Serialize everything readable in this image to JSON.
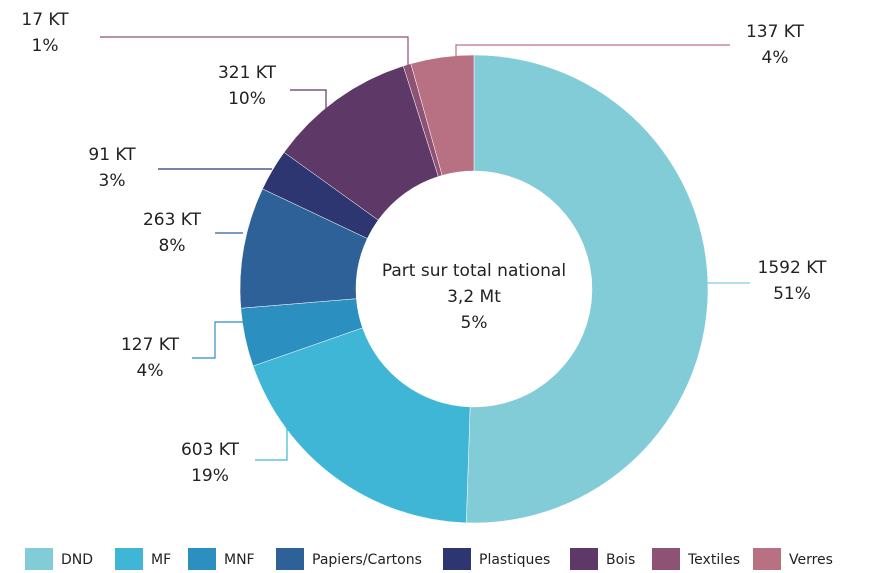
{
  "chart_data": {
    "type": "donut",
    "categories": [
      "DND",
      "MF",
      "MNF",
      "Papiers/Cartons",
      "Plastiques",
      "Bois",
      "Textiles",
      "Verres"
    ],
    "values": [
      1592,
      603,
      127,
      263,
      91,
      321,
      17,
      137
    ],
    "value_labels": [
      "1592 KT",
      "603 KT",
      "127 KT",
      "263 KT",
      "91 KT",
      "321 KT",
      "17 KT",
      "137 KT"
    ],
    "percent_labels": [
      "51%",
      "19%",
      "4%",
      "8%",
      "3%",
      "10%",
      "1%",
      "4%"
    ],
    "colors": [
      "#82ccd8",
      "#3fb6d6",
      "#2b8fbf",
      "#2f6199",
      "#2d3670",
      "#5e3866",
      "#8e5275",
      "#b87083"
    ],
    "center_text": [
      "Part sur total national",
      "3,2 Mt",
      "5%"
    ],
    "legend": "bottom"
  }
}
